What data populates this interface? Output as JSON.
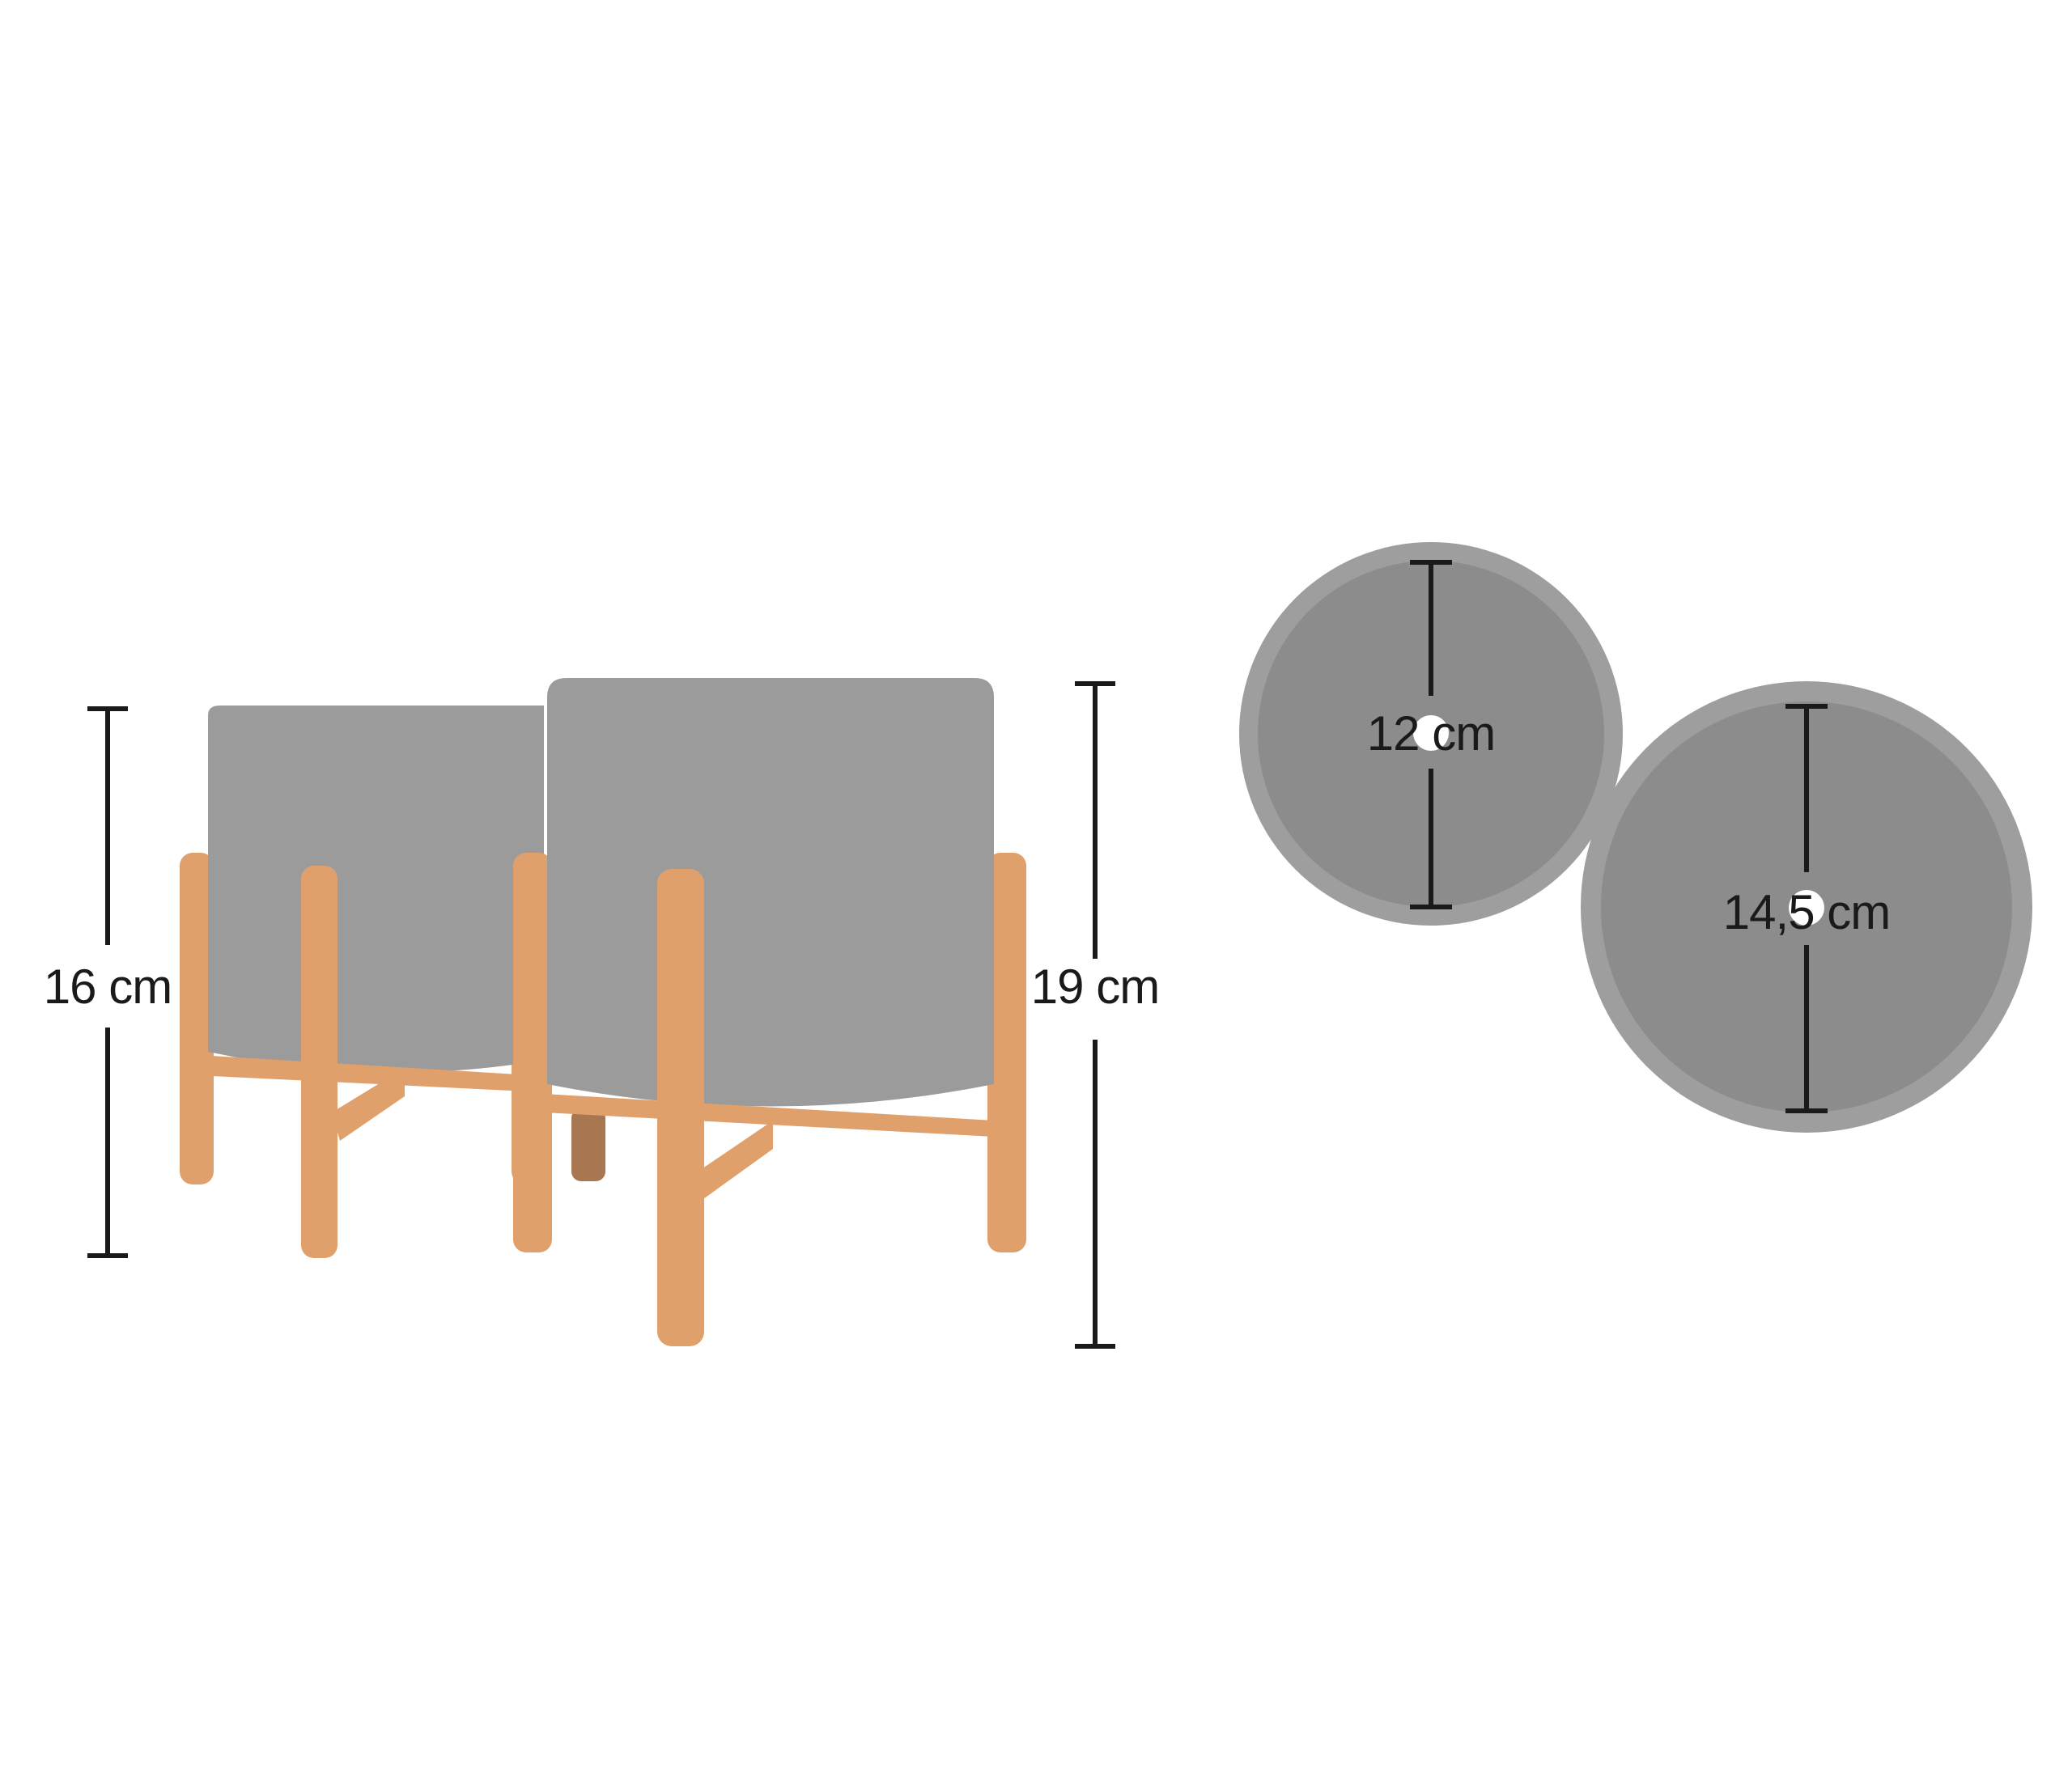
{
  "dimensions": {
    "small_height": "16 cm",
    "large_height": "19 cm",
    "small_diameter": "12 cm",
    "large_diameter": "14,5 cm"
  },
  "colors": {
    "pot": "#9b9b9b",
    "pot_top_rim": "#9e9e9e",
    "pot_top_inner": "#8c8c8c",
    "wood": "#e0a06c",
    "wood_back_leg": "#a87650",
    "dimension_line": "#1a1a1a"
  }
}
